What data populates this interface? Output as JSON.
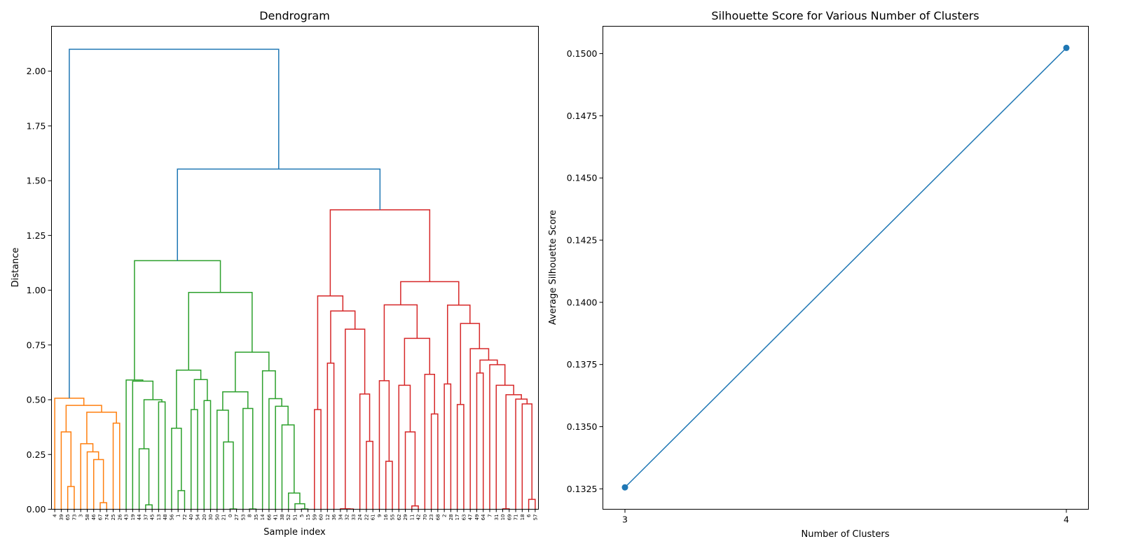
{
  "chart_data": [
    {
      "type": "dendrogram",
      "title": "Dendrogram",
      "xlabel": "Sample index",
      "ylabel": "Distance",
      "ylim": [
        0,
        2.205
      ],
      "yticks": [
        "0.00",
        "0.25",
        "0.50",
        "0.75",
        "1.00",
        "1.25",
        "1.50",
        "1.75",
        "2.00"
      ],
      "color_threshold": 1.47,
      "above_threshold_color": "#1f77b4",
      "cluster_colors": [
        "#ff7f0e",
        "#2ca02c",
        "#d62728"
      ],
      "leaf_labels": [
        "4",
        "39",
        "65",
        "73",
        "3",
        "58",
        "46",
        "67",
        "74",
        "25",
        "26",
        "43",
        "19",
        "44",
        "37",
        "45",
        "13",
        "48",
        "56",
        "1",
        "72",
        "40",
        "54",
        "20",
        "30",
        "50",
        "21",
        "0",
        "27",
        "53",
        "8",
        "35",
        "14",
        "66",
        "41",
        "38",
        "52",
        "51",
        "5",
        "15",
        "59",
        "60",
        "12",
        "36",
        "34",
        "32",
        "33",
        "24",
        "22",
        "61",
        "9",
        "16",
        "55",
        "62",
        "29",
        "11",
        "42",
        "70",
        "23",
        "68",
        "2",
        "28",
        "17",
        "63",
        "47",
        "49",
        "64",
        "7",
        "31",
        "10",
        "69",
        "71",
        "18",
        "6",
        "57"
      ],
      "tree": [
        [
          4,
          [
            [
              39,
              [
                65,
                73,
                0.104
              ],
              0.353
            ],
            [
              [
                3,
                [
                  58,
                  [
                    46,
                    [
                      67,
                      74,
                      0.03
                    ],
                    0.227
                  ],
                  0.262
                ],
                0.299
              ],
              [
                25,
                26,
                0.393
              ],
              0.443
            ],
            0.474
          ],
          0.507
        ],
        [
          [
            [
              43,
              [
                19,
                [
                  [
                    44,
                    [
                      37,
                      45,
                      0.02
                    ],
                    0.276
                  ],
                  [
                    13,
                    48,
                    0.49
                  ],
                  0.5
                ],
                0.585
              ],
              0.59
            ],
            [
              [
                [
                  56,
                  [
                    1,
                    72,
                    0.085
                  ],
                  0.37
                ],
                [
                  [
                    40,
                    54,
                    0.455
                  ],
                  [
                    20,
                    30,
                    0.496
                  ],
                  0.592
                ],
                0.635
              ],
              [
                [
                  [
                    50,
                    [
                      21,
                      [
                        0,
                        27,
                        0.001
                      ],
                      0.307
                    ],
                    0.452
                  ],
                  [
                    53,
                    [
                      8,
                      35,
                      0.001
                    ],
                    0.46
                  ],
                  0.536
                ],
                [
                  14,
                  [
                    66,
                    [
                      41,
                      [
                        38,
                        [
                          52,
                          [
                            51,
                            [
                              5,
                              15,
                              0.001
                            ],
                            0.025
                          ],
                          0.074
                        ],
                        0.385
                      ],
                      0.47
                    ],
                    0.505
                  ],
                  0.632
                ],
                0.717
              ],
              0.99
            ],
            1.135
          ],
          [
            [
              [
                59,
                60,
                0.455
              ],
              [
                [
                  12,
                  36,
                  0.667
                ],
                [
                  [
                    34,
                    [
                      32,
                      33,
                      0.001
                    ],
                    0.002
                  ],
                  [
                    24,
                    [
                      22,
                      61,
                      0.31
                    ],
                    0.526
                  ],
                  0.822
                ],
                0.905
              ],
              0.974
            ],
            [
              [
                [
                  9,
                  [
                    16,
                    55,
                    0.219
                  ],
                  0.587
                ],
                [
                  [
                    62,
                    [
                      29,
                      [
                        11,
                        42,
                        0.015
                      ],
                      0.353
                    ],
                    0.566
                  ],
                  [
                    70,
                    [
                      23,
                      68,
                      0.435
                    ],
                    0.616
                  ],
                  0.78
                ],
                0.933
              ],
              [
                [
                  2,
                  28,
                  0.572
                ],
                [
                  [
                    17,
                    63,
                    0.478
                  ],
                  [
                    47,
                    [
                      [
                        49,
                        64,
                        0.622
                      ],
                      [
                        7,
                        [
                          31,
                          [
                            [
                              10,
                              69,
                              0.002
                            ],
                            [
                              71,
                              [
                                18,
                                [
                                  6,
                                  57,
                                  0.045
                                ],
                                0.481
                              ],
                              0.503
                            ],
                            0.523
                          ],
                          0.566
                        ],
                        0.66
                      ],
                      0.681
                    ],
                    0.733
                  ],
                  0.848
                ],
                0.932
              ],
              1.039
            ],
            1.367
          ],
          1.553
        ],
        2.1
      ]
    },
    {
      "type": "line",
      "title": "Silhouette Score for Various Number of Clusters",
      "xlabel": "Number of Clusters",
      "ylabel": "Average Silhouette Score",
      "x": [
        3,
        4
      ],
      "y": [
        0.13256,
        0.15023
      ],
      "xlim": [
        2.95,
        4.05
      ],
      "ylim": [
        0.13168,
        0.1511
      ],
      "xticks": [
        "3",
        "4"
      ],
      "yticks": [
        "0.1325",
        "0.1350",
        "0.1375",
        "0.1400",
        "0.1425",
        "0.1450",
        "0.1475",
        "0.1500"
      ],
      "color": "#1f77b4",
      "marker": "circle",
      "grid": false
    }
  ]
}
